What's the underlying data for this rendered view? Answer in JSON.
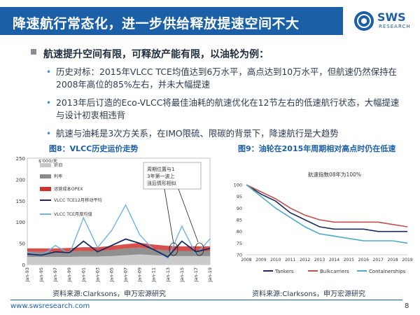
{
  "header": {
    "title": "降速航行常态化，进一步供给释放提速空间不大",
    "logo_text": "SWS",
    "logo_sub": "RESEARCH"
  },
  "lead": "航速提升空间有限，可释放产能有限，以油轮为例：",
  "bullets": [
    {
      "text": "历史对标：2015年VLCC TCE均值达到6万水平，高点达到10万水平，但航速仍然保持在2008年高位的85%左右，并未大幅提速"
    },
    {
      "text": "2013年后订造的Eco-VLCC将最佳油耗的航速优化在12节左右的低速航行状态，大幅提速与设计初衷相违背"
    },
    {
      "text": "航速与油耗是3次方关系，在IMO限硫、限碳的背景下，降速航行是大趋势"
    }
  ],
  "figure8": {
    "title": "图8：VLCC历史运价走势",
    "source": "资料来源:Clarksons，申万宏源研究",
    "unit": "$'000/天",
    "legend": [
      "折旧",
      "利率",
      "运营成本OPEX",
      "VLCC TCE12月移动平均",
      "VLCC TCE月度均值"
    ],
    "annotation": "周期位置与13年第一波上涨后情形相似",
    "colors": {
      "dep": "#c8c8c8",
      "int": "#8a8a8a",
      "opex": "#d0312d",
      "ma": "#1a2b5c",
      "monthly": "#6fb3e0"
    }
  },
  "figure9": {
    "title": "图9：油轮在2015年周期相对高点时仍在低速",
    "source": "资料来源:Clarksons，申万宏源研究"
  },
  "footer": {
    "url": "www.swsresearch.com",
    "page": "8"
  },
  "chart_data": [
    {
      "type": "area",
      "title": "图8：VLCC历史运价走势",
      "ylabel": "$'000/天",
      "ylim": [
        0,
        250
      ],
      "yticks": [
        0,
        50,
        100,
        150,
        200,
        250
      ],
      "x_ticks": [
        "Jan-93",
        "Jan-95",
        "Jan-97",
        "Jan-99",
        "Jan-01",
        "Jan-03",
        "Jan-05",
        "Jan-07",
        "Jan-09",
        "Jan-11",
        "Jan-13",
        "Jan-15",
        "Jan-17",
        "Jan-19"
      ],
      "series": [
        {
          "name": "折旧",
          "values": [
            18,
            18,
            18,
            18,
            19,
            19,
            20,
            22,
            24,
            22,
            20,
            20,
            20,
            20
          ]
        },
        {
          "name": "利率",
          "values": [
            12,
            12,
            12,
            13,
            13,
            13,
            14,
            16,
            16,
            14,
            13,
            12,
            12,
            12
          ]
        },
        {
          "name": "运营成本OPEX",
          "values": [
            8,
            8,
            8,
            8,
            9,
            9,
            10,
            10,
            11,
            11,
            11,
            11,
            11,
            11
          ]
        },
        {
          "name": "VLCC TCE12月移动平均",
          "values": [
            25,
            22,
            30,
            28,
            55,
            30,
            45,
            60,
            50,
            35,
            18,
            55,
            30,
            38
          ]
        },
        {
          "name": "VLCC TCE月度均值",
          "values": [
            30,
            20,
            45,
            25,
            110,
            40,
            80,
            140,
            70,
            35,
            15,
            90,
            25,
            60
          ]
        }
      ]
    },
    {
      "type": "line",
      "title": "图9：油轮在2015年周期相对高点时仍在低速",
      "subtitle": "航速指数08年为100%",
      "ylim": [
        70,
        100
      ],
      "yticks": [
        70,
        75,
        80,
        85,
        90,
        95,
        100
      ],
      "categories": [
        "2008",
        "2009",
        "2010",
        "2011",
        "2012",
        "2013",
        "2014",
        "2015",
        "2016",
        "2017",
        "2018",
        "2019"
      ],
      "series": [
        {
          "name": "Tankers",
          "color": "#1a2b5c",
          "values": [
            100,
            96,
            93,
            88,
            85,
            82,
            81,
            81,
            81,
            80,
            80,
            80
          ]
        },
        {
          "name": "Bulkcarriers",
          "color": "#c0504d",
          "values": [
            100,
            97,
            94,
            90,
            87,
            85,
            84,
            84,
            84,
            84,
            83,
            82
          ]
        },
        {
          "name": "Containerships",
          "color": "#4bacc6",
          "values": [
            100,
            95,
            90,
            86,
            82,
            79,
            78,
            77,
            76,
            76,
            76,
            75
          ]
        }
      ]
    }
  ]
}
